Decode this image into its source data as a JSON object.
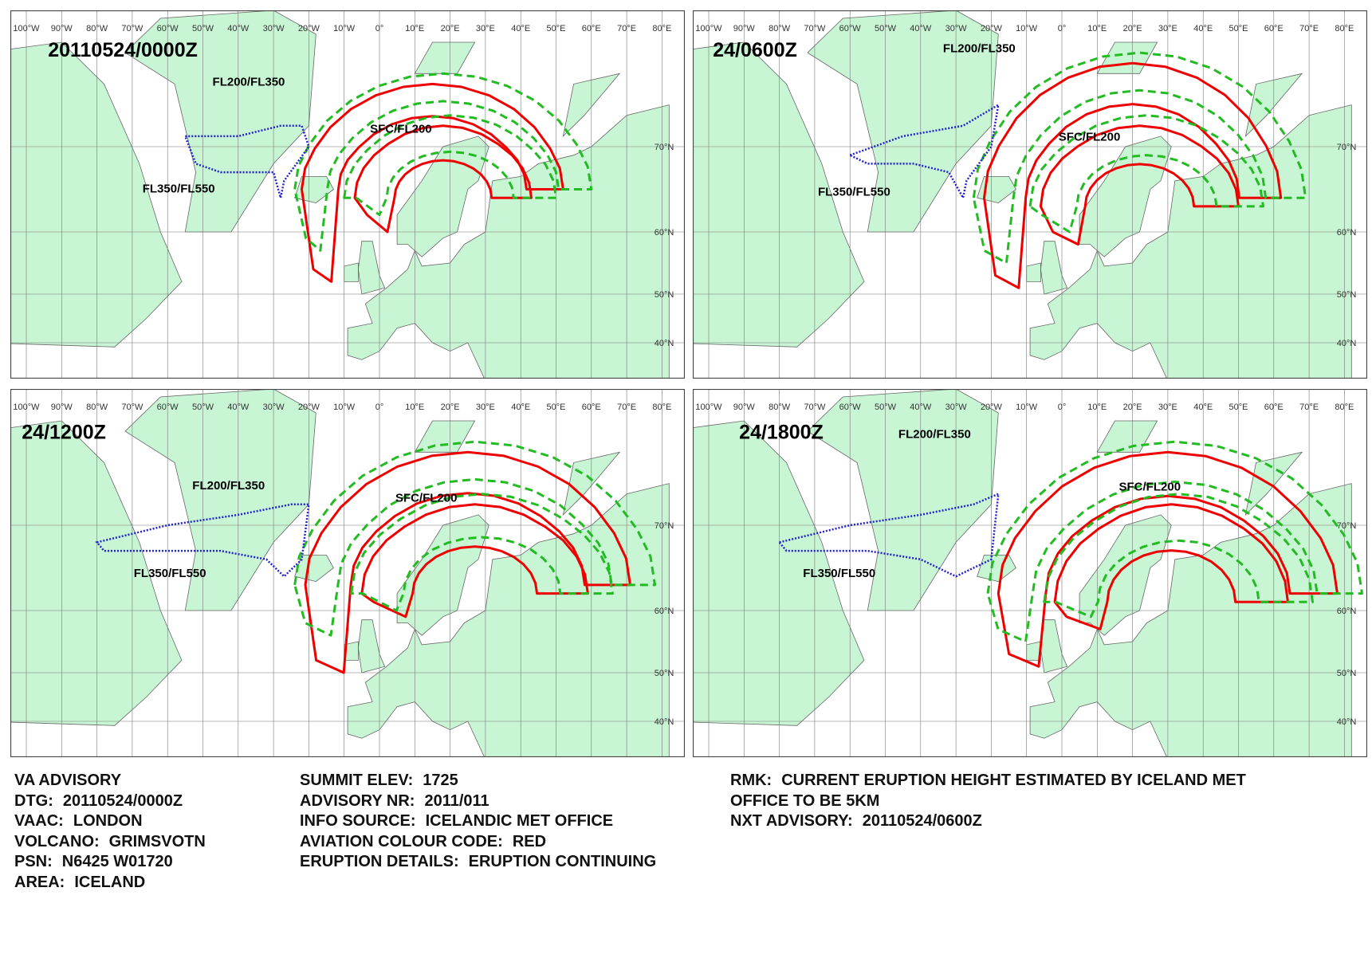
{
  "panels": [
    {
      "title": "20110524/0000Z",
      "labels": [
        "FL200/FL350",
        "SFC/FL200",
        "FL350/FL550"
      ]
    },
    {
      "title": "24/0600Z",
      "labels": [
        "FL200/FL350",
        "SFC/FL200",
        "FL350/FL550"
      ]
    },
    {
      "title": "24/1200Z",
      "labels": [
        "FL200/FL350",
        "SFC/FL200",
        "FL350/FL550"
      ]
    },
    {
      "title": "24/1800Z",
      "labels": [
        "FL200/FL350",
        "SFC/FL200",
        "FL350/FL550"
      ]
    }
  ],
  "longitudes": [
    "100°W",
    "90°W",
    "80°W",
    "70°W",
    "60°W",
    "50°W",
    "40°W",
    "30°W",
    "20°W",
    "10°W",
    "0°",
    "10°E",
    "20°E",
    "30°E",
    "40°E",
    "50°E",
    "60°E",
    "70°E",
    "80°E"
  ],
  "latitudes": [
    "70°N",
    "60°N",
    "50°N",
    "40°N"
  ],
  "advisory": {
    "columns": [
      [
        {
          "key": "VA ADVISORY"
        },
        {
          "key": "DTG:",
          "value": "20110524/0000Z"
        },
        {
          "key": "VAAC:",
          "value": "LONDON"
        },
        {
          "key": "VOLCANO:",
          "value": "GRIMSVOTN"
        },
        {
          "key": "PSN:",
          "value": "N6425 W01720"
        },
        {
          "key": "AREA:",
          "value": "ICELAND"
        }
      ],
      [
        {
          "key": "SUMMIT ELEV:",
          "value": "1725"
        },
        {
          "key": "ADVISORY NR:",
          "value": "2011/011"
        },
        {
          "key": "INFO SOURCE:",
          "value": "ICELANDIC MET OFFICE"
        },
        {
          "key": "AVIATION COLOUR CODE:",
          "value": "RED"
        },
        {
          "key": "ERUPTION DETAILS:",
          "value": "ERUPTION CONTINUING"
        }
      ],
      [
        {
          "key": "RMK:",
          "value": "CURRENT ERUPTION HEIGHT ESTIMATED BY ICELAND MET"
        },
        {
          "value": "OFFICE TO BE 5KM"
        },
        {
          "key": "NXT ADVISORY:",
          "value": "20110524/0600Z"
        }
      ]
    ]
  }
}
